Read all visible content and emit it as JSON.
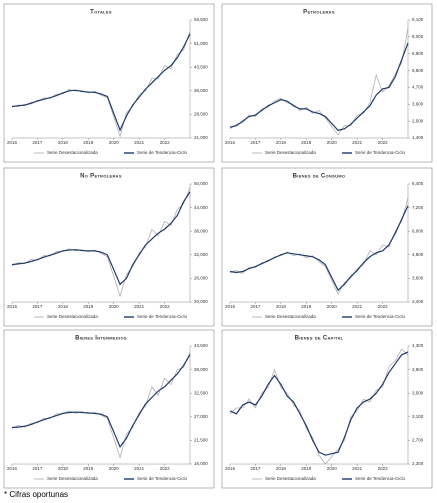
{
  "chart_data": [
    {
      "type": "line",
      "title": "Totales",
      "x": [
        2016,
        2016.25,
        2016.5,
        2016.75,
        2017,
        2017.25,
        2017.5,
        2017.75,
        2018,
        2018.25,
        2018.5,
        2018.75,
        2019,
        2019.25,
        2019.5,
        2019.75,
        2020.25,
        2020.5,
        2020.75,
        2021,
        2021.25,
        2021.5,
        2021.75,
        2022,
        2022.25,
        2022.5,
        2022.75,
        2023
      ],
      "xlim": [
        2016,
        2023
      ],
      "xticks": [
        2016,
        2017,
        2018,
        2019,
        2020,
        2021,
        2022
      ],
      "ylim": [
        21000,
        58500
      ],
      "yticks": [
        {
          "value": 21000,
          "label": "21,000"
        },
        {
          "value": 28500,
          "label": "28,500"
        },
        {
          "value": 36000,
          "label": "36,000"
        },
        {
          "value": 43500,
          "label": "43,500"
        },
        {
          "value": 51000,
          "label": "51,000"
        },
        {
          "value": 58500,
          "label": "58,500"
        }
      ],
      "series": [
        {
          "name": "Serie Desestacionalizada",
          "color": "#a6a6a6",
          "values": [
            30800,
            31500,
            31200,
            32400,
            32500,
            33800,
            33600,
            34900,
            35000,
            36400,
            35900,
            36100,
            35300,
            35800,
            34600,
            33900,
            21500,
            29000,
            31000,
            34800,
            36000,
            40000,
            39800,
            44000,
            43000,
            47500,
            49000,
            55000
          ]
        },
        {
          "name": "Serie de Tendencia-Ciclo",
          "color": "#1f3a6e",
          "values": [
            31000,
            31200,
            31500,
            32000,
            32800,
            33300,
            33800,
            34500,
            35300,
            36000,
            36200,
            35800,
            35600,
            35500,
            35000,
            34200,
            23500,
            28000,
            31500,
            34000,
            36500,
            38500,
            40500,
            42500,
            44000,
            46500,
            50000,
            54000
          ]
        }
      ]
    },
    {
      "type": "line",
      "title": "Petroleras",
      "x": [
        2016,
        2016.25,
        2016.5,
        2016.75,
        2017,
        2017.25,
        2017.5,
        2017.75,
        2018,
        2018.25,
        2018.5,
        2018.75,
        2019,
        2019.25,
        2019.5,
        2019.75,
        2020.25,
        2020.5,
        2020.75,
        2021,
        2021.25,
        2021.5,
        2021.75,
        2022,
        2022.25,
        2022.5,
        2022.75,
        2023
      ],
      "xlim": [
        2016,
        2023
      ],
      "xticks": [
        2016,
        2017,
        2018,
        2019,
        2020,
        2021,
        2022
      ],
      "ylim": [
        1400,
        9100
      ],
      "yticks": [
        {
          "value": 1400,
          "label": "1,400"
        },
        {
          "value": 2500,
          "label": "2,500"
        },
        {
          "value": 3600,
          "label": "3,600"
        },
        {
          "value": 4700,
          "label": "4,700"
        },
        {
          "value": 5800,
          "label": "5,800"
        },
        {
          "value": 6900,
          "label": "6,900"
        },
        {
          "value": 8000,
          "label": "8,000"
        },
        {
          "value": 9100,
          "label": "9,100"
        }
      ],
      "series": [
        {
          "name": "Serie Desestacionalizada",
          "color": "#a6a6a6",
          "values": [
            2000,
            2300,
            2400,
            2900,
            2800,
            3300,
            3400,
            3800,
            4000,
            3700,
            3600,
            3200,
            3400,
            3000,
            3200,
            2700,
            1600,
            2200,
            2200,
            2900,
            3000,
            3700,
            5500,
            4400,
            4800,
            5600,
            6300,
            8600
          ]
        },
        {
          "name": "Serie de Tendencia-Ciclo",
          "color": "#1f3a6e",
          "values": [
            2100,
            2200,
            2500,
            2800,
            2900,
            3200,
            3500,
            3700,
            3900,
            3800,
            3500,
            3300,
            3300,
            3100,
            3000,
            2800,
            1900,
            2000,
            2300,
            2700,
            3100,
            3500,
            4200,
            4600,
            4700,
            5400,
            6500,
            7600
          ]
        }
      ]
    },
    {
      "type": "line",
      "title": "No Petroleras",
      "x": [
        2016,
        2016.25,
        2016.5,
        2016.75,
        2017,
        2017.25,
        2017.5,
        2017.75,
        2018,
        2018.25,
        2018.5,
        2018.75,
        2019,
        2019.25,
        2019.5,
        2019.75,
        2020.25,
        2020.5,
        2020.75,
        2021,
        2021.25,
        2021.5,
        2021.75,
        2022,
        2022.25,
        2022.5,
        2022.75,
        2023
      ],
      "xlim": [
        2016,
        2023
      ],
      "xticks": [
        2016,
        2017,
        2018,
        2019,
        2020,
        2021,
        2022
      ],
      "ylim": [
        20000,
        50000
      ],
      "yticks": [
        {
          "value": 20000,
          "label": "20,000"
        },
        {
          "value": 26000,
          "label": "26,000"
        },
        {
          "value": 32000,
          "label": "32,000"
        },
        {
          "value": 38000,
          "label": "38,000"
        },
        {
          "value": 44000,
          "label": "44,000"
        },
        {
          "value": 50000,
          "label": "50,000"
        }
      ],
      "series": [
        {
          "name": "Serie Desestacionalizada",
          "color": "#a6a6a6",
          "values": [
            29300,
            30000,
            29700,
            30800,
            30600,
            31800,
            31700,
            32800,
            32900,
            33500,
            33000,
            33300,
            32800,
            33200,
            32400,
            31500,
            21500,
            27000,
            29000,
            32500,
            34000,
            38500,
            36800,
            40500,
            39500,
            43500,
            45000,
            49000
          ]
        },
        {
          "name": "Serie de Tendencia-Ciclo",
          "color": "#1f3a6e",
          "values": [
            29500,
            29700,
            29900,
            30300,
            30800,
            31400,
            31900,
            32400,
            33000,
            33200,
            33300,
            33100,
            33000,
            33000,
            32700,
            32000,
            24500,
            26000,
            29500,
            32000,
            34500,
            36000,
            37500,
            38500,
            40000,
            42000,
            45500,
            48000
          ]
        }
      ]
    },
    {
      "type": "line",
      "title": "Bienes de Consumo",
      "x": [
        2016,
        2016.25,
        2016.5,
        2016.75,
        2017,
        2017.25,
        2017.5,
        2017.75,
        2018,
        2018.25,
        2018.5,
        2018.75,
        2019,
        2019.25,
        2019.5,
        2019.75,
        2020.25,
        2020.5,
        2020.75,
        2021,
        2021.25,
        2021.5,
        2021.75,
        2022,
        2022.25,
        2022.5,
        2022.75,
        2023
      ],
      "xlim": [
        2016,
        2023
      ],
      "xticks": [
        2016,
        2017,
        2018,
        2019,
        2020,
        2021,
        2022
      ],
      "ylim": [
        2400,
        8400
      ],
      "yticks": [
        {
          "value": 2400,
          "label": "2,400"
        },
        {
          "value": 3600,
          "label": "3,600"
        },
        {
          "value": 4800,
          "label": "4,800"
        },
        {
          "value": 6000,
          "label": "6,000"
        },
        {
          "value": 7200,
          "label": "7,200"
        },
        {
          "value": 8400,
          "label": "8,400"
        }
      ],
      "series": [
        {
          "name": "Serie Desestacionalizada",
          "color": "#a6a6a6",
          "values": [
            3900,
            4000,
            3850,
            4150,
            4150,
            4400,
            4450,
            4700,
            4750,
            4950,
            4750,
            4850,
            4650,
            4750,
            4450,
            4200,
            2800,
            3400,
            3600,
            4100,
            4300,
            5000,
            4800,
            5300,
            5200,
            6000,
            6500,
            7700
          ]
        },
        {
          "name": "Serie de Tendencia-Ciclo",
          "color": "#1f3a6e",
          "values": [
            3950,
            3900,
            3950,
            4100,
            4200,
            4350,
            4500,
            4650,
            4800,
            4900,
            4850,
            4800,
            4750,
            4700,
            4550,
            4300,
            3000,
            3300,
            3700,
            4000,
            4400,
            4700,
            4900,
            5000,
            5300,
            5900,
            6600,
            7300
          ]
        }
      ]
    },
    {
      "type": "line",
      "title": "Bienes Intermedios",
      "x": [
        2016,
        2016.25,
        2016.5,
        2016.75,
        2017,
        2017.25,
        2017.5,
        2017.75,
        2018,
        2018.25,
        2018.5,
        2018.75,
        2019,
        2019.25,
        2019.5,
        2019.75,
        2020.25,
        2020.5,
        2020.75,
        2021,
        2021.25,
        2021.5,
        2021.75,
        2022,
        2022.25,
        2022.5,
        2022.75,
        2023
      ],
      "xlim": [
        2016,
        2023
      ],
      "xticks": [
        2016,
        2017,
        2018,
        2019,
        2020,
        2021,
        2022
      ],
      "ylim": [
        16000,
        43500
      ],
      "yticks": [
        {
          "value": 16000,
          "label": "16,000"
        },
        {
          "value": 21500,
          "label": "21,500"
        },
        {
          "value": 27000,
          "label": "27,000"
        },
        {
          "value": 32500,
          "label": "32,500"
        },
        {
          "value": 38000,
          "label": "38,000"
        },
        {
          "value": 43500,
          "label": "43,500"
        }
      ],
      "series": [
        {
          "name": "Serie Desestacionalizada",
          "color": "#a6a6a6",
          "values": [
            24300,
            25000,
            24600,
            25500,
            25600,
            26700,
            26600,
            27700,
            27700,
            28400,
            27800,
            28200,
            27700,
            28000,
            27400,
            26600,
            17500,
            23000,
            24500,
            28000,
            29500,
            34000,
            32000,
            36000,
            34500,
            38000,
            38500,
            42000
          ]
        },
        {
          "name": "Serie de Tendencia-Ciclo",
          "color": "#1f3a6e",
          "values": [
            24500,
            24600,
            24800,
            25200,
            25800,
            26300,
            26800,
            27300,
            27800,
            28000,
            28100,
            28000,
            27900,
            27800,
            27600,
            27000,
            20000,
            22000,
            25000,
            27500,
            30000,
            31500,
            33000,
            34000,
            35500,
            37000,
            39000,
            41500
          ]
        }
      ]
    },
    {
      "type": "line",
      "title": "Bienes de Capital",
      "x": [
        2016,
        2016.25,
        2016.5,
        2016.75,
        2017,
        2017.25,
        2017.5,
        2017.75,
        2018,
        2018.25,
        2018.5,
        2018.75,
        2019,
        2019.25,
        2019.5,
        2019.75,
        2020.25,
        2020.5,
        2020.75,
        2021,
        2021.25,
        2021.5,
        2021.75,
        2022,
        2022.25,
        2022.5,
        2022.75,
        2023
      ],
      "xlim": [
        2016,
        2023
      ],
      "xticks": [
        2016,
        2017,
        2018,
        2019,
        2020,
        2021,
        2022
      ],
      "ylim": [
        2300,
        4300
      ],
      "yticks": [
        {
          "value": 2300,
          "label": "2,300"
        },
        {
          "value": 2700,
          "label": "2,700"
        },
        {
          "value": 3100,
          "label": "3,100"
        },
        {
          "value": 3500,
          "label": "3,500"
        },
        {
          "value": 3900,
          "label": "3,900"
        },
        {
          "value": 4300,
          "label": "4,300"
        }
      ],
      "series": [
        {
          "name": "Serie Desestacionalizada",
          "color": "#a6a6a6",
          "values": [
            3150,
            3250,
            3250,
            3400,
            3250,
            3500,
            3600,
            3900,
            3600,
            3500,
            3300,
            3200,
            2900,
            2750,
            2450,
            2300,
            2550,
            2700,
            3100,
            3200,
            3400,
            3350,
            3550,
            3600,
            3950,
            4050,
            4250,
            4150
          ]
        },
        {
          "name": "Serie de Tendencia-Ciclo",
          "color": "#1f3a6e",
          "values": [
            3200,
            3150,
            3300,
            3350,
            3300,
            3450,
            3650,
            3800,
            3650,
            3450,
            3350,
            3150,
            2950,
            2700,
            2500,
            2450,
            2500,
            2750,
            3050,
            3250,
            3350,
            3400,
            3500,
            3650,
            3850,
            4000,
            4150,
            4200
          ]
        }
      ]
    }
  ],
  "footnote": "* Cifras oportunas"
}
